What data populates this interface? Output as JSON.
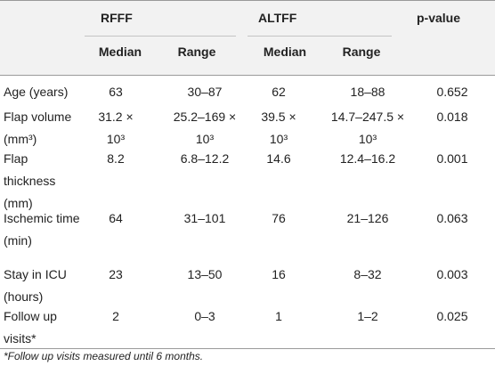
{
  "table": {
    "groups": [
      "RFFF",
      "ALTFF",
      "p-value"
    ],
    "subheaders": [
      "Median",
      "Range",
      "Median",
      "Range"
    ],
    "rows": [
      [
        "Age (years)",
        "63",
        "30–87",
        "62",
        "18–88",
        "0.652"
      ],
      [
        "Flap volume (mm³)",
        "31.2 × 10³",
        "25.2–169 × 10³",
        "39.5 × 10³",
        "14.7–247.5 × 10³",
        "0.018"
      ],
      [
        "Flap thickness (mm)",
        "8.2",
        "6.8–12.2",
        "14.6",
        "12.4–16.2",
        "0.001"
      ],
      [
        "Ischemic time (min)",
        "64",
        "31–101",
        "76",
        "21–126",
        "0.063"
      ],
      [
        "Stay in ICU (hours)",
        "23",
        "13–50",
        "16",
        "8–32",
        "0.003"
      ],
      [
        "Follow up visits*",
        "2",
        "0–3",
        "1",
        "1–2",
        "0.025"
      ]
    ]
  },
  "footnote": "*Follow up visits measured until 6 months."
}
